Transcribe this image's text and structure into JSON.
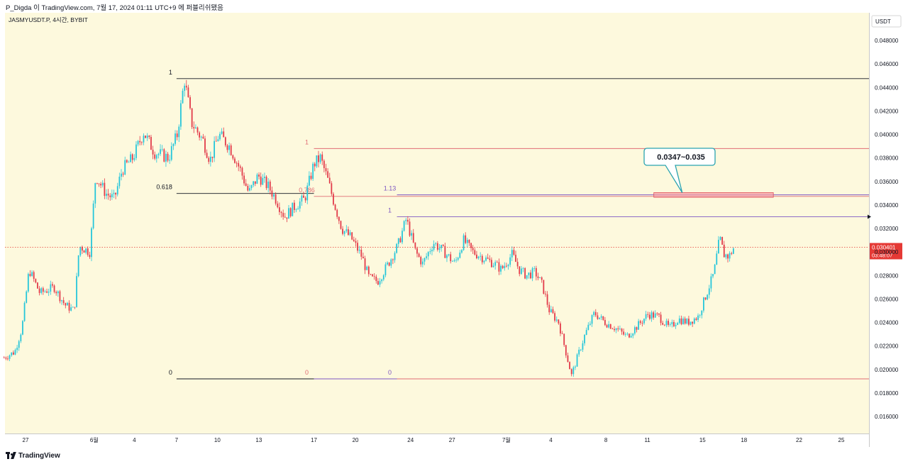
{
  "header": {
    "publish_line": "P_Digda 이 TradingView.com, 7월 17, 2024 01:11 UTC+9 에 퍼블리쉬됐음"
  },
  "chart_data": {
    "type": "candlestick",
    "symbol_line": "JASMYUSDT.P, 4시간, BYBIT",
    "currency": "USDT",
    "ylim": [
      0.0145,
      0.0505
    ],
    "y_ticks": [
      "0.048000",
      "0.046000",
      "0.044000",
      "0.042000",
      "0.040000",
      "0.038000",
      "0.036000",
      "0.034000",
      "0.032000",
      "0.030000",
      "0.028000",
      "0.026000",
      "0.024000",
      "0.022000",
      "0.020000",
      "0.018000",
      "0.016000"
    ],
    "x_ticks": [
      {
        "label": "27",
        "t": 0
      },
      {
        "label": "6월",
        "t": 96
      },
      {
        "label": "4",
        "t": 152
      },
      {
        "label": "7",
        "t": 211
      },
      {
        "label": "10",
        "t": 268
      },
      {
        "label": "13",
        "t": 326
      },
      {
        "label": "17",
        "t": 403
      },
      {
        "label": "20",
        "t": 461
      },
      {
        "label": "24",
        "t": 538
      },
      {
        "label": "27",
        "t": 596
      },
      {
        "label": "7월",
        "t": 672
      },
      {
        "label": "4",
        "t": 734
      },
      {
        "label": "8",
        "t": 811
      },
      {
        "label": "11",
        "t": 869
      },
      {
        "label": "15",
        "t": 946
      },
      {
        "label": "18",
        "t": 1004
      },
      {
        "label": "22",
        "t": 1081
      },
      {
        "label": "25",
        "t": 1140
      }
    ],
    "x_range": [
      -30,
      1190
    ],
    "price_line": 0.030401,
    "last_price_label": "0.030401",
    "countdown_label": "03:48:07",
    "anchors": [
      {
        "t": -30,
        "p": 0.021
      },
      {
        "t": -15,
        "p": 0.0215
      },
      {
        "t": -5,
        "p": 0.0235
      },
      {
        "t": 5,
        "p": 0.0285
      },
      {
        "t": 20,
        "p": 0.0265
      },
      {
        "t": 40,
        "p": 0.027
      },
      {
        "t": 55,
        "p": 0.0255
      },
      {
        "t": 68,
        "p": 0.025
      },
      {
        "t": 75,
        "p": 0.0305
      },
      {
        "t": 90,
        "p": 0.03
      },
      {
        "t": 98,
        "p": 0.0365
      },
      {
        "t": 112,
        "p": 0.035
      },
      {
        "t": 124,
        "p": 0.0345
      },
      {
        "t": 135,
        "p": 0.037
      },
      {
        "t": 150,
        "p": 0.038
      },
      {
        "t": 165,
        "p": 0.0402
      },
      {
        "t": 180,
        "p": 0.0385
      },
      {
        "t": 200,
        "p": 0.038
      },
      {
        "t": 212,
        "p": 0.04
      },
      {
        "t": 222,
        "p": 0.0447
      },
      {
        "t": 232,
        "p": 0.041
      },
      {
        "t": 248,
        "p": 0.0395
      },
      {
        "t": 258,
        "p": 0.0378
      },
      {
        "t": 270,
        "p": 0.04
      },
      {
        "t": 285,
        "p": 0.039
      },
      {
        "t": 300,
        "p": 0.037
      },
      {
        "t": 312,
        "p": 0.035
      },
      {
        "t": 325,
        "p": 0.0365
      },
      {
        "t": 340,
        "p": 0.0355
      },
      {
        "t": 350,
        "p": 0.0345
      },
      {
        "t": 362,
        "p": 0.033
      },
      {
        "t": 378,
        "p": 0.034
      },
      {
        "t": 390,
        "p": 0.0345
      },
      {
        "t": 403,
        "p": 0.0375
      },
      {
        "t": 412,
        "p": 0.038
      },
      {
        "t": 422,
        "p": 0.0362
      },
      {
        "t": 432,
        "p": 0.034
      },
      {
        "t": 442,
        "p": 0.032
      },
      {
        "t": 455,
        "p": 0.0312
      },
      {
        "t": 470,
        "p": 0.0296
      },
      {
        "t": 480,
        "p": 0.0278
      },
      {
        "t": 492,
        "p": 0.0275
      },
      {
        "t": 505,
        "p": 0.0288
      },
      {
        "t": 520,
        "p": 0.0305
      },
      {
        "t": 532,
        "p": 0.0328
      },
      {
        "t": 545,
        "p": 0.03
      },
      {
        "t": 555,
        "p": 0.029
      },
      {
        "t": 570,
        "p": 0.0308
      },
      {
        "t": 585,
        "p": 0.03
      },
      {
        "t": 600,
        "p": 0.029
      },
      {
        "t": 612,
        "p": 0.031
      },
      {
        "t": 625,
        "p": 0.03
      },
      {
        "t": 640,
        "p": 0.0295
      },
      {
        "t": 655,
        "p": 0.029
      },
      {
        "t": 665,
        "p": 0.0285
      },
      {
        "t": 680,
        "p": 0.0298
      },
      {
        "t": 690,
        "p": 0.0285
      },
      {
        "t": 700,
        "p": 0.028
      },
      {
        "t": 712,
        "p": 0.0283
      },
      {
        "t": 722,
        "p": 0.0272
      },
      {
        "t": 732,
        "p": 0.025
      },
      {
        "t": 745,
        "p": 0.024
      },
      {
        "t": 755,
        "p": 0.0215
      },
      {
        "t": 763,
        "p": 0.0195
      },
      {
        "t": 772,
        "p": 0.0212
      },
      {
        "t": 782,
        "p": 0.023
      },
      {
        "t": 795,
        "p": 0.0248
      },
      {
        "t": 810,
        "p": 0.024
      },
      {
        "t": 825,
        "p": 0.0235
      },
      {
        "t": 840,
        "p": 0.0228
      },
      {
        "t": 855,
        "p": 0.0237
      },
      {
        "t": 870,
        "p": 0.0247
      },
      {
        "t": 885,
        "p": 0.0245
      },
      {
        "t": 900,
        "p": 0.0235
      },
      {
        "t": 912,
        "p": 0.0243
      },
      {
        "t": 925,
        "p": 0.024
      },
      {
        "t": 940,
        "p": 0.0245
      },
      {
        "t": 952,
        "p": 0.0265
      },
      {
        "t": 962,
        "p": 0.0282
      },
      {
        "t": 970,
        "p": 0.0312
      },
      {
        "t": 976,
        "p": 0.0298
      },
      {
        "t": 983,
        "p": 0.0296
      },
      {
        "t": 990,
        "p": 0.0304
      }
    ],
    "fib_sets": [
      {
        "color": "#131722",
        "t_start": 211,
        "t_end": 1190,
        "levels": [
          {
            "label": "1",
            "price": 0.04475,
            "t_end": 1190
          },
          {
            "label": "0.618",
            "price": 0.03498,
            "t_end": 403
          },
          {
            "label": "0",
            "price": 0.0192,
            "t_end": 403
          }
        ]
      },
      {
        "color": "#e06d75",
        "t_start": 403,
        "t_end": 1190,
        "levels": [
          {
            "label": "1",
            "price": 0.0388,
            "t_end": 1190
          },
          {
            "label": "0.786",
            "price": 0.03473,
            "t_end": 1190
          },
          {
            "label": "0",
            "price": 0.0192,
            "t_end": 1190
          }
        ]
      },
      {
        "color": "#7e57c2",
        "t_start": 519,
        "t_end": 1190,
        "levels": [
          {
            "label": "1",
            "price": 0.033,
            "t_end": 1190
          },
          {
            "label": "1.13",
            "price": 0.03486,
            "t_end": 1190
          },
          {
            "label": "0",
            "price": 0.0192,
            "t_end": 403
          }
        ]
      }
    ],
    "zone": {
      "t_start": 878,
      "t_end": 1045,
      "low": 0.03465,
      "high": 0.03505
    },
    "callout": {
      "text": "0.0347~0.035",
      "t": 914,
      "p": 0.0381
    },
    "colors": {
      "background": "#fdf9dd",
      "up": "#26c6da",
      "down": "#e23b4a",
      "price_line": "#e53935",
      "zone_fill": "#f4a0a7",
      "zone_border": "#e0505b",
      "callout_border": "#2aa3b0"
    }
  },
  "footer": {
    "logo_text": "TradingView"
  }
}
